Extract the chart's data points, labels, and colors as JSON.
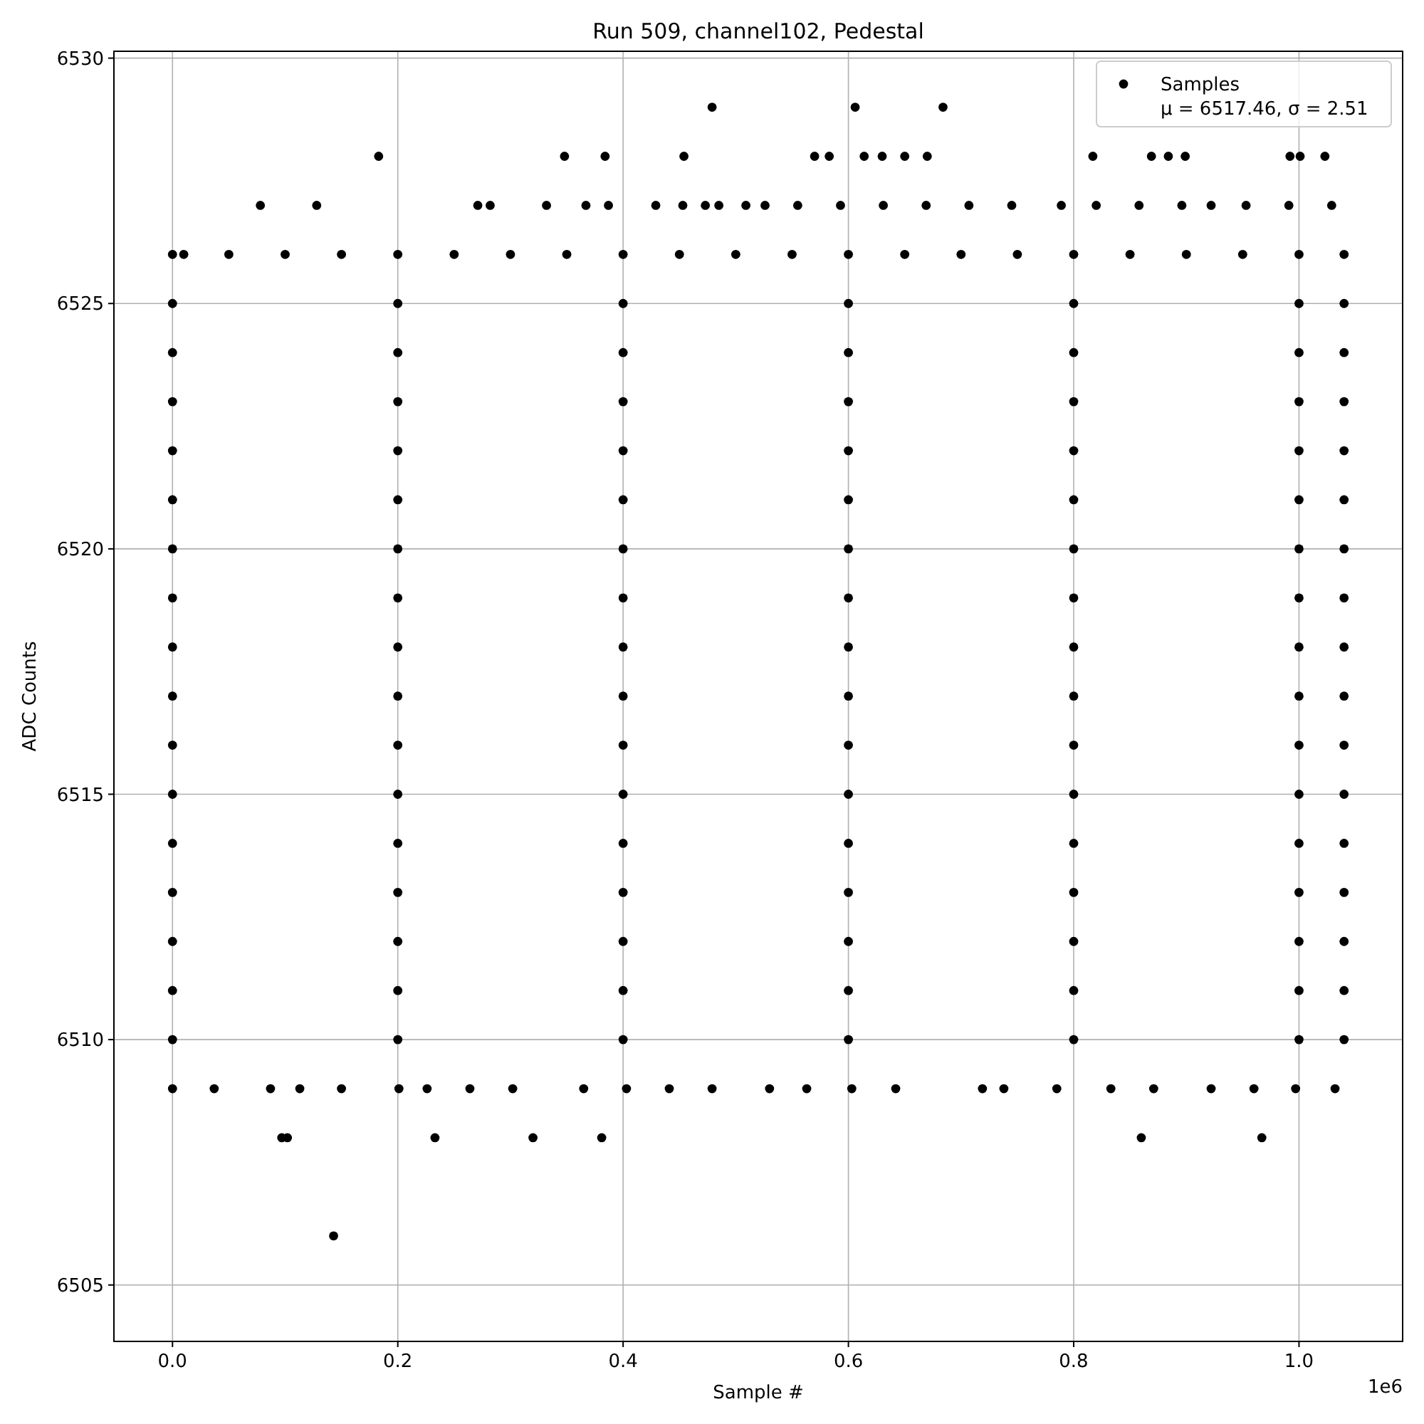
{
  "chart_data": {
    "type": "scatter",
    "title": "Run 509, channel102, Pedestal",
    "xlabel": "Sample #",
    "ylabel": "ADC Counts",
    "annotations": [
      "μ = 6517.46, σ = 2.51",
      "1e6"
    ],
    "xlim": [
      -0.052,
      1.092
    ],
    "ylim": [
      6503.85,
      6530.14
    ],
    "xticks": [
      {
        "value": 0,
        "label": "0.0"
      },
      0.2,
      0.4,
      0.6,
      0.8,
      {
        "value": 1,
        "label": "1.0"
      }
    ],
    "yticks": [
      6505,
      6510,
      6515,
      6520,
      6525,
      6530
    ],
    "grid": true,
    "legend": "top right",
    "marker": "circle",
    "series": [
      {
        "name": "Samples",
        "color": "#000000",
        "x": [
          0,
          0.2,
          0.4,
          0.6,
          0.8,
          1.0,
          1.04,
          0,
          0.2,
          0.4,
          0.6,
          0.8,
          1.0,
          1.04,
          0,
          0.2,
          0.4,
          0.6,
          0.8,
          1.0,
          1.04,
          0,
          0.2,
          0.4,
          0.6,
          0.8,
          1.0,
          1.04,
          0,
          0.2,
          0.4,
          0.6,
          0.8,
          1.0,
          1.04,
          0,
          0.2,
          0.4,
          0.6,
          0.8,
          1.0,
          1.04,
          0,
          0.2,
          0.4,
          0.6,
          0.8,
          1.0,
          1.04,
          0,
          0.2,
          0.4,
          0.6,
          0.8,
          1.0,
          1.04,
          0,
          0.2,
          0.4,
          0.6,
          0.8,
          1.0,
          1.04,
          0,
          0.2,
          0.4,
          0.6,
          0.8,
          1.0,
          1.04,
          0,
          0.2,
          0.4,
          0.6,
          0.8,
          1.0,
          1.04,
          0,
          0.2,
          0.4,
          0.6,
          0.8,
          1.0,
          1.04,
          0,
          0.2,
          0.4,
          0.6,
          0.8,
          1.0,
          1.04,
          0,
          0.2,
          0.4,
          0.6,
          0.8,
          1.0,
          1.04,
          0,
          0.2,
          0.4,
          0.6,
          0.8,
          1.0,
          1.04,
          0,
          0.2,
          0.4,
          0.6,
          0.8,
          1.0,
          1.04,
          0,
          0.01,
          0.05,
          0.1,
          0.15,
          0.2,
          0.25,
          0.3,
          0.35,
          0.4,
          0.45,
          0.5,
          0.55,
          0.6,
          0.65,
          0.7,
          0.75,
          0.8,
          0.85,
          0.9,
          0.95,
          1.0,
          1.04,
          0.078,
          0.128,
          0.271,
          0.282,
          0.332,
          0.367,
          0.387,
          0.429,
          0.453,
          0.473,
          0.485,
          0.509,
          0.526,
          0.555,
          0.593,
          0.631,
          0.669,
          0.707,
          0.745,
          0.789,
          0.82,
          0.858,
          0.896,
          0.922,
          0.953,
          0.991,
          1.029,
          0.183,
          0.348,
          0.384,
          0.454,
          0.57,
          0.583,
          0.614,
          0.63,
          0.65,
          0.67,
          0.817,
          0.869,
          0.884,
          0.899,
          0.992,
          1.001,
          1.023,
          0.479,
          0.606,
          0.684,
          0,
          0.037,
          0.087,
          0.113,
          0.15,
          0.201,
          0.226,
          0.264,
          0.302,
          0.365,
          0.403,
          0.441,
          0.479,
          0.53,
          0.563,
          0.603,
          0.642,
          0.719,
          0.738,
          0.785,
          0.833,
          0.871,
          0.922,
          0.96,
          0.997,
          1.032,
          0.097,
          0.102,
          0.233,
          0.32,
          0.381,
          0.86,
          0.967,
          0.143
        ],
        "values": [
          6510,
          6510,
          6510,
          6510,
          6510,
          6510,
          6510,
          6511,
          6511,
          6511,
          6511,
          6511,
          6511,
          6511,
          6512,
          6512,
          6512,
          6512,
          6512,
          6512,
          6512,
          6513,
          6513,
          6513,
          6513,
          6513,
          6513,
          6513,
          6514,
          6514,
          6514,
          6514,
          6514,
          6514,
          6514,
          6515,
          6515,
          6515,
          6515,
          6515,
          6515,
          6515,
          6516,
          6516,
          6516,
          6516,
          6516,
          6516,
          6516,
          6517,
          6517,
          6517,
          6517,
          6517,
          6517,
          6517,
          6518,
          6518,
          6518,
          6518,
          6518,
          6518,
          6518,
          6519,
          6519,
          6519,
          6519,
          6519,
          6519,
          6519,
          6520,
          6520,
          6520,
          6520,
          6520,
          6520,
          6520,
          6521,
          6521,
          6521,
          6521,
          6521,
          6521,
          6521,
          6522,
          6522,
          6522,
          6522,
          6522,
          6522,
          6522,
          6523,
          6523,
          6523,
          6523,
          6523,
          6523,
          6523,
          6524,
          6524,
          6524,
          6524,
          6524,
          6524,
          6524,
          6525,
          6525,
          6525,
          6525,
          6525,
          6525,
          6525,
          6526,
          6526,
          6526,
          6526,
          6526,
          6526,
          6526,
          6526,
          6526,
          6526,
          6526,
          6526,
          6526,
          6526,
          6526,
          6526,
          6526,
          6526,
          6526,
          6526,
          6526,
          6526,
          6526,
          6527,
          6527,
          6527,
          6527,
          6527,
          6527,
          6527,
          6527,
          6527,
          6527,
          6527,
          6527,
          6527,
          6527,
          6527,
          6527,
          6527,
          6527,
          6527,
          6527,
          6527,
          6527,
          6527,
          6527,
          6527,
          6527,
          6527,
          6528,
          6528,
          6528,
          6528,
          6528,
          6528,
          6528,
          6528,
          6528,
          6528,
          6528,
          6528,
          6528,
          6528,
          6528,
          6528,
          6528,
          6529,
          6529,
          6529,
          6509,
          6509,
          6509,
          6509,
          6509,
          6509,
          6509,
          6509,
          6509,
          6509,
          6509,
          6509,
          6509,
          6509,
          6509,
          6509,
          6509,
          6509,
          6509,
          6509,
          6509,
          6509,
          6509,
          6509,
          6509,
          6509,
          6508,
          6508,
          6508,
          6508,
          6508,
          6508,
          6508,
          6506
        ]
      }
    ]
  }
}
